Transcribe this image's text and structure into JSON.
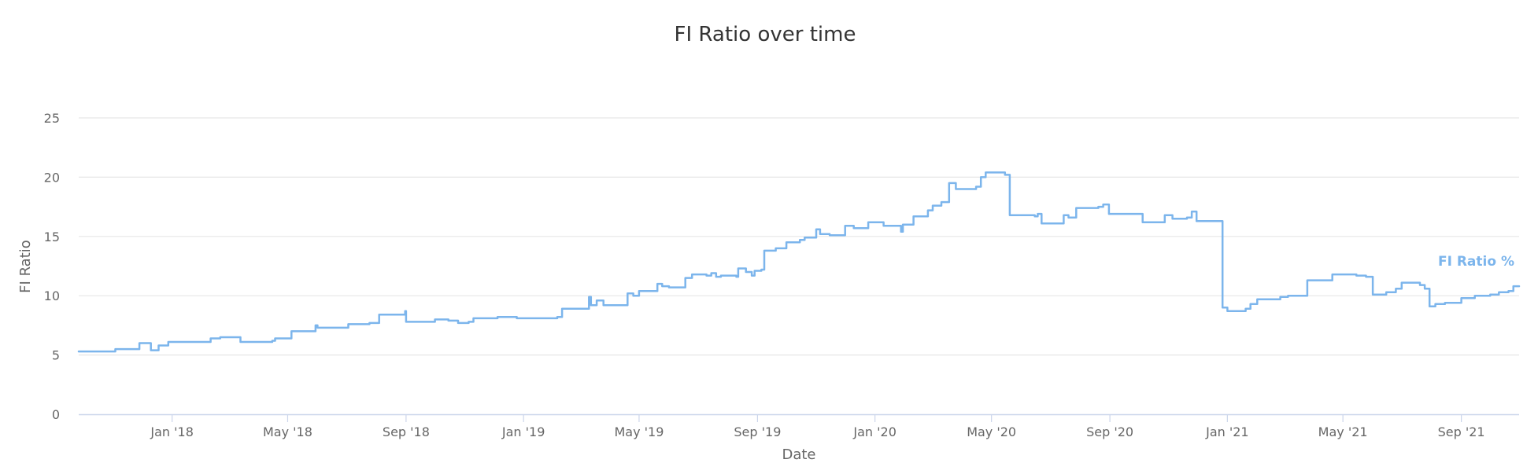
{
  "chart_data": {
    "type": "line",
    "title": "FI Ratio over time",
    "xlabel": "Date",
    "ylabel": "FI Ratio",
    "ylim": [
      0,
      25
    ],
    "xlim": [
      "2017-09-26",
      "2021-10-31"
    ],
    "y_ticks": [
      0,
      5,
      10,
      15,
      20,
      25
    ],
    "x_ticks": [
      {
        "date": "2018-01-01",
        "label": "Jan '18"
      },
      {
        "date": "2018-05-01",
        "label": "May '18"
      },
      {
        "date": "2018-09-01",
        "label": "Sep '18"
      },
      {
        "date": "2019-01-01",
        "label": "Jan '19"
      },
      {
        "date": "2019-05-01",
        "label": "May '19"
      },
      {
        "date": "2019-09-01",
        "label": "Sep '19"
      },
      {
        "date": "2020-01-01",
        "label": "Jan '20"
      },
      {
        "date": "2020-05-01",
        "label": "May '20"
      },
      {
        "date": "2020-09-01",
        "label": "Sep '20"
      },
      {
        "date": "2021-01-01",
        "label": "Jan '21"
      },
      {
        "date": "2021-05-01",
        "label": "May '21"
      },
      {
        "date": "2021-09-01",
        "label": "Sep '21"
      }
    ],
    "grid": true,
    "legend": "none",
    "series": [
      {
        "name": "FI Ratio %",
        "color": "#7cb5ec",
        "step": true,
        "points": [
          [
            "2017-09-26",
            5.3
          ],
          [
            "2017-10-15",
            5.3
          ],
          [
            "2017-11-03",
            5.5
          ],
          [
            "2017-11-20",
            5.5
          ],
          [
            "2017-11-28",
            6.0
          ],
          [
            "2017-12-08",
            6.0
          ],
          [
            "2017-12-10",
            5.4
          ],
          [
            "2017-12-18",
            5.8
          ],
          [
            "2017-12-28",
            6.1
          ],
          [
            "2018-01-15",
            6.1
          ],
          [
            "2018-02-07",
            6.1
          ],
          [
            "2018-02-10",
            6.4
          ],
          [
            "2018-02-20",
            6.5
          ],
          [
            "2018-03-10",
            6.5
          ],
          [
            "2018-03-13",
            6.1
          ],
          [
            "2018-04-01",
            6.1
          ],
          [
            "2018-04-15",
            6.2
          ],
          [
            "2018-04-18",
            6.4
          ],
          [
            "2018-05-01",
            6.4
          ],
          [
            "2018-05-05",
            7.0
          ],
          [
            "2018-05-29",
            7.0
          ],
          [
            "2018-05-30",
            7.5
          ],
          [
            "2018-06-01",
            7.3
          ],
          [
            "2018-06-25",
            7.3
          ],
          [
            "2018-07-03",
            7.6
          ],
          [
            "2018-07-25",
            7.7
          ],
          [
            "2018-08-01",
            7.7
          ],
          [
            "2018-08-04",
            8.4
          ],
          [
            "2018-08-30",
            8.4
          ],
          [
            "2018-08-31",
            8.7
          ],
          [
            "2018-09-01",
            7.8
          ],
          [
            "2018-09-25",
            7.8
          ],
          [
            "2018-10-01",
            8.0
          ],
          [
            "2018-10-15",
            7.9
          ],
          [
            "2018-10-25",
            7.7
          ],
          [
            "2018-11-05",
            7.8
          ],
          [
            "2018-11-10",
            8.1
          ],
          [
            "2018-11-30",
            8.1
          ],
          [
            "2018-12-05",
            8.2
          ],
          [
            "2018-12-25",
            8.1
          ],
          [
            "2019-01-15",
            8.1
          ],
          [
            "2019-02-05",
            8.2
          ],
          [
            "2019-02-10",
            8.9
          ],
          [
            "2019-03-08",
            8.9
          ],
          [
            "2019-03-10",
            9.9
          ],
          [
            "2019-03-12",
            9.2
          ],
          [
            "2019-03-18",
            9.6
          ],
          [
            "2019-03-25",
            9.2
          ],
          [
            "2019-04-17",
            9.2
          ],
          [
            "2019-04-19",
            10.2
          ],
          [
            "2019-04-25",
            10.0
          ],
          [
            "2019-05-01",
            10.4
          ],
          [
            "2019-05-15",
            10.4
          ],
          [
            "2019-05-20",
            11.0
          ],
          [
            "2019-05-25",
            10.8
          ],
          [
            "2019-06-01",
            10.7
          ],
          [
            "2019-06-15",
            10.7
          ],
          [
            "2019-06-18",
            11.5
          ],
          [
            "2019-06-25",
            11.8
          ],
          [
            "2019-07-10",
            11.7
          ],
          [
            "2019-07-15",
            11.9
          ],
          [
            "2019-07-20",
            11.6
          ],
          [
            "2019-07-25",
            11.7
          ],
          [
            "2019-08-10",
            11.6
          ],
          [
            "2019-08-12",
            12.3
          ],
          [
            "2019-08-20",
            12.0
          ],
          [
            "2019-08-26",
            11.7
          ],
          [
            "2019-08-29",
            12.1
          ],
          [
            "2019-09-05",
            12.2
          ],
          [
            "2019-09-08",
            13.8
          ],
          [
            "2019-09-20",
            14.0
          ],
          [
            "2019-10-01",
            14.5
          ],
          [
            "2019-10-15",
            14.7
          ],
          [
            "2019-10-20",
            14.9
          ],
          [
            "2019-11-01",
            15.6
          ],
          [
            "2019-11-05",
            15.2
          ],
          [
            "2019-11-15",
            15.1
          ],
          [
            "2019-12-01",
            15.9
          ],
          [
            "2019-12-10",
            15.7
          ],
          [
            "2019-12-25",
            16.2
          ],
          [
            "2020-01-10",
            15.9
          ],
          [
            "2020-01-25",
            15.9
          ],
          [
            "2020-01-28",
            15.4
          ],
          [
            "2020-01-30",
            16.0
          ],
          [
            "2020-02-10",
            16.7
          ],
          [
            "2020-02-25",
            17.2
          ],
          [
            "2020-03-01",
            17.6
          ],
          [
            "2020-03-10",
            17.9
          ],
          [
            "2020-03-18",
            19.5
          ],
          [
            "2020-03-25",
            19.0
          ],
          [
            "2020-04-15",
            19.2
          ],
          [
            "2020-04-20",
            20.0
          ],
          [
            "2020-04-25",
            20.4
          ],
          [
            "2020-05-10",
            20.4
          ],
          [
            "2020-05-15",
            20.2
          ],
          [
            "2020-05-20",
            16.8
          ],
          [
            "2020-06-15",
            16.7
          ],
          [
            "2020-06-18",
            16.9
          ],
          [
            "2020-06-22",
            16.1
          ],
          [
            "2020-07-10",
            16.1
          ],
          [
            "2020-07-15",
            16.8
          ],
          [
            "2020-07-20",
            16.6
          ],
          [
            "2020-07-28",
            17.4
          ],
          [
            "2020-08-20",
            17.5
          ],
          [
            "2020-08-25",
            17.7
          ],
          [
            "2020-08-31",
            16.9
          ],
          [
            "2020-09-30",
            16.9
          ],
          [
            "2020-10-05",
            16.2
          ],
          [
            "2020-10-25",
            16.2
          ],
          [
            "2020-10-28",
            16.8
          ],
          [
            "2020-11-05",
            16.5
          ],
          [
            "2020-11-20",
            16.6
          ],
          [
            "2020-11-25",
            17.1
          ],
          [
            "2020-11-30",
            16.3
          ],
          [
            "2020-12-25",
            16.3
          ],
          [
            "2020-12-27",
            9.0
          ],
          [
            "2021-01-01",
            8.7
          ],
          [
            "2021-01-20",
            8.9
          ],
          [
            "2021-01-25",
            9.3
          ],
          [
            "2021-02-01",
            9.7
          ],
          [
            "2021-02-25",
            9.9
          ],
          [
            "2021-03-05",
            10.0
          ],
          [
            "2021-03-20",
            10.0
          ],
          [
            "2021-03-25",
            11.3
          ],
          [
            "2021-04-15",
            11.3
          ],
          [
            "2021-04-20",
            11.8
          ],
          [
            "2021-05-15",
            11.7
          ],
          [
            "2021-05-25",
            11.6
          ],
          [
            "2021-06-01",
            10.1
          ],
          [
            "2021-06-15",
            10.3
          ],
          [
            "2021-06-25",
            10.6
          ],
          [
            "2021-07-01",
            11.1
          ],
          [
            "2021-07-20",
            10.9
          ],
          [
            "2021-07-25",
            10.6
          ],
          [
            "2021-07-30",
            9.1
          ],
          [
            "2021-08-05",
            9.3
          ],
          [
            "2021-08-15",
            9.4
          ],
          [
            "2021-09-01",
            9.8
          ],
          [
            "2021-09-15",
            10.0
          ],
          [
            "2021-10-01",
            10.1
          ],
          [
            "2021-10-10",
            10.3
          ],
          [
            "2021-10-20",
            10.4
          ],
          [
            "2021-10-25",
            10.8
          ],
          [
            "2021-10-31",
            10.8
          ]
        ]
      }
    ]
  }
}
